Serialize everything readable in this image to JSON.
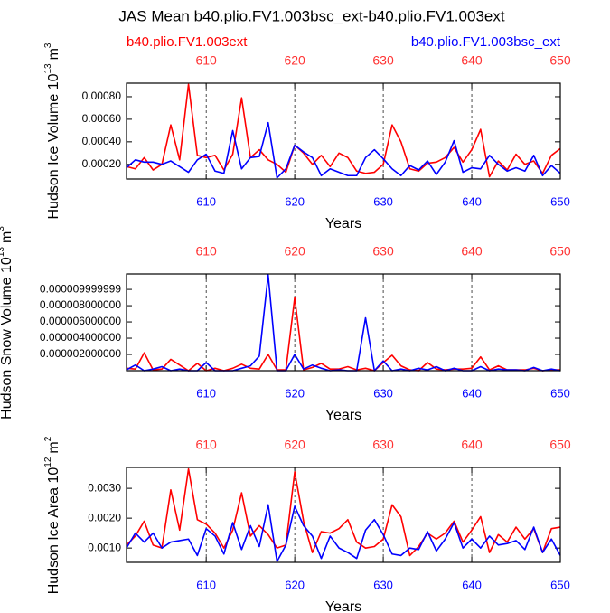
{
  "title": "JAS Mean b40.plio.FV1.003bsc_ext-b40.plio.FV1.003ext",
  "chart_data": [
    {
      "type": "line",
      "ylabel": "Hudson Ice Volume 10",
      "ylabel_power": "13",
      "yunit": "m",
      "yunit_power": "3",
      "xlabel": "Years",
      "x": [
        601,
        602,
        603,
        604,
        605,
        606,
        607,
        608,
        609,
        610,
        611,
        612,
        613,
        614,
        615,
        616,
        617,
        618,
        619,
        620,
        621,
        622,
        623,
        624,
        625,
        626,
        627,
        628,
        629,
        630,
        631,
        632,
        633,
        634,
        635,
        636,
        637,
        638,
        639,
        640,
        641,
        642,
        643,
        644,
        645,
        646,
        647,
        648,
        649,
        650
      ],
      "xlim": [
        601,
        650
      ],
      "xticks": [
        610,
        620,
        630,
        640,
        650
      ],
      "ylim": [
        7e-05,
        0.00092
      ],
      "yticks": [
        {
          "value": 0.0002,
          "label": "0.00020"
        },
        {
          "value": 0.0004,
          "label": "0.00040"
        },
        {
          "value": 0.0006,
          "label": "0.00060"
        },
        {
          "value": 0.0008,
          "label": "0.00080"
        }
      ],
      "grid": true,
      "series": [
        {
          "name": "b40.plio.FV1.003ext",
          "color": "#ff0000",
          "values": [
            0.00018,
            0.00016,
            0.00026,
            0.00015,
            0.0002,
            0.00055,
            0.00024,
            0.00091,
            0.00028,
            0.00026,
            0.00028,
            0.00015,
            0.00029,
            0.00079,
            0.00026,
            0.00033,
            0.00024,
            0.0002,
            0.00013,
            0.00037,
            0.0003,
            0.0002,
            0.00028,
            0.00018,
            0.0003,
            0.00026,
            0.00014,
            0.00012,
            0.00013,
            0.0002,
            0.00055,
            0.0004,
            0.00016,
            0.00014,
            0.00021,
            0.00022,
            0.00026,
            0.00035,
            0.00022,
            0.00033,
            0.00051,
            9e-05,
            0.00023,
            0.00015,
            0.00029,
            0.0002,
            0.00023,
            0.00012,
            0.00028,
            0.00034
          ]
        },
        {
          "name": "b40.plio.FV1.003bsc_ext",
          "color": "#0000ff",
          "values": [
            0.00017,
            0.00024,
            0.00022,
            0.00022,
            0.0002,
            0.00023,
            0.00018,
            0.00013,
            0.00024,
            0.00029,
            0.00014,
            0.00012,
            0.0005,
            0.00016,
            0.00026,
            0.00027,
            0.00057,
            8e-05,
            0.00016,
            0.00037,
            0.00031,
            0.00026,
            0.0001,
            0.00016,
            0.00013,
            0.0001,
            0.0001,
            0.00026,
            0.00033,
            0.00025,
            0.00016,
            0.0001,
            0.00019,
            0.00015,
            0.00023,
            0.00011,
            0.00022,
            0.00041,
            0.00013,
            0.00017,
            0.00016,
            0.00028,
            0.0002,
            0.00014,
            0.00017,
            0.00014,
            0.00028,
            0.0001,
            0.00019,
            0.00012
          ]
        }
      ]
    },
    {
      "type": "line",
      "ylabel": "Hudson Snow Volume 10",
      "ylabel_power": "13",
      "yunit": "m",
      "yunit_power": "3",
      "xlabel": "Years",
      "x": [
        601,
        602,
        603,
        604,
        605,
        606,
        607,
        608,
        609,
        610,
        611,
        612,
        613,
        614,
        615,
        616,
        617,
        618,
        619,
        620,
        621,
        622,
        623,
        624,
        625,
        626,
        627,
        628,
        629,
        630,
        631,
        632,
        633,
        634,
        635,
        636,
        637,
        638,
        639,
        640,
        641,
        642,
        643,
        644,
        645,
        646,
        647,
        648,
        649,
        650
      ],
      "xlim": [
        601,
        650
      ],
      "xticks": [
        610,
        620,
        630,
        640,
        650
      ],
      "ylim": [
        0,
        1.19e-05
      ],
      "yticks": [
        {
          "value": 2e-06,
          "label": "0.000002000000"
        },
        {
          "value": 4e-06,
          "label": "0.000004000000"
        },
        {
          "value": 6e-06,
          "label": "0.000006000000"
        },
        {
          "value": 8e-06,
          "label": "0.000008000000"
        },
        {
          "value": 1e-05,
          "label": "0.000009999999"
        }
      ],
      "grid": true,
      "series": [
        {
          "color": "#ff0000",
          "values": [
            3e-07,
            2e-07,
            2.2e-06,
            1e-07,
            2e-07,
            1.4e-06,
            7e-07,
            0,
            9e-07,
            0,
            3e-07,
            0,
            3e-07,
            8e-07,
            3e-07,
            2e-07,
            2e-06,
            1e-07,
            1e-07,
            9e-06,
            1e-07,
            4e-07,
            9e-07,
            2e-07,
            2e-07,
            5e-07,
            1e-07,
            3e-07,
            0,
            1e-06,
            1.9e-06,
            6e-07,
            1e-07,
            0,
            1e-06,
            2e-07,
            1e-07,
            2e-07,
            2e-07,
            3e-07,
            1.7e-06,
            1e-07,
            6e-07,
            1e-07,
            1e-07,
            1e-07,
            3e-07,
            0,
            1e-07,
            1e-07
          ]
        },
        {
          "color": "#0000ff",
          "values": [
            1e-07,
            7e-07,
            0,
            2e-07,
            5e-07,
            0,
            2e-07,
            0,
            0,
            1e-06,
            0,
            0,
            0,
            3e-07,
            6e-07,
            1.8e-06,
            1.18e-05,
            0,
            0,
            2e-06,
            2e-07,
            7e-07,
            3e-07,
            0,
            1e-07,
            0,
            0,
            6.5e-06,
            0,
            1.2e-06,
            0,
            2e-07,
            0,
            3e-07,
            1e-07,
            5e-07,
            0,
            3e-07,
            0,
            0,
            5e-07,
            0,
            2e-07,
            1e-07,
            1e-07,
            0,
            4e-07,
            0,
            2e-07,
            0
          ]
        }
      ]
    },
    {
      "type": "line",
      "ylabel": "Hudson Ice Area 10",
      "ylabel_power": "12",
      "yunit": "m",
      "yunit_power": "2",
      "xlabel": "Years",
      "x": [
        601,
        602,
        603,
        604,
        605,
        606,
        607,
        608,
        609,
        610,
        611,
        612,
        613,
        614,
        615,
        616,
        617,
        618,
        619,
        620,
        621,
        622,
        623,
        624,
        625,
        626,
        627,
        628,
        629,
        630,
        631,
        632,
        633,
        634,
        635,
        636,
        637,
        638,
        639,
        640,
        641,
        642,
        643,
        644,
        645,
        646,
        647,
        648,
        649,
        650
      ],
      "xlim": [
        601,
        650
      ],
      "xticks": [
        610,
        620,
        630,
        640,
        650
      ],
      "ylim": [
        0.00052,
        0.0037
      ],
      "yticks": [
        {
          "value": 0.001,
          "label": "0.0010"
        },
        {
          "value": 0.002,
          "label": "0.0020"
        },
        {
          "value": 0.003,
          "label": "0.0030"
        }
      ],
      "grid": true,
      "series": [
        {
          "color": "#ff0000",
          "values": [
            0.0011,
            0.0014,
            0.0019,
            0.0011,
            0.001,
            0.00295,
            0.0016,
            0.00365,
            0.00195,
            0.0018,
            0.0015,
            0.001,
            0.0016,
            0.00285,
            0.0014,
            0.00175,
            0.00145,
            0.001,
            0.0011,
            0.00355,
            0.0019,
            0.00085,
            0.00155,
            0.0015,
            0.00165,
            0.00195,
            0.0012,
            0.001,
            0.00105,
            0.0013,
            0.00245,
            0.00205,
            0.00075,
            0.00105,
            0.0015,
            0.0013,
            0.0015,
            0.0019,
            0.0012,
            0.0016,
            0.00205,
            0.00085,
            0.00145,
            0.0012,
            0.0017,
            0.0013,
            0.00165,
            0.00085,
            0.00165,
            0.0017
          ]
        },
        {
          "color": "#0000ff",
          "values": [
            0.001,
            0.0015,
            0.0012,
            0.0015,
            0.001,
            0.0012,
            0.00125,
            0.0013,
            0.00075,
            0.00165,
            0.0014,
            0.0008,
            0.00185,
            0.00095,
            0.00175,
            0.00105,
            0.00245,
            0.00055,
            0.0011,
            0.0024,
            0.00175,
            0.0014,
            0.00065,
            0.0014,
            0.001,
            0.00085,
            0.00065,
            0.0016,
            0.00195,
            0.00145,
            0.0008,
            0.00075,
            0.001,
            0.00095,
            0.00155,
            0.0009,
            0.0013,
            0.00185,
            0.001,
            0.0013,
            0.001,
            0.0014,
            0.0011,
            0.00115,
            0.00125,
            0.00095,
            0.0017,
            0.00085,
            0.0013,
            0.00075
          ]
        }
      ]
    }
  ]
}
